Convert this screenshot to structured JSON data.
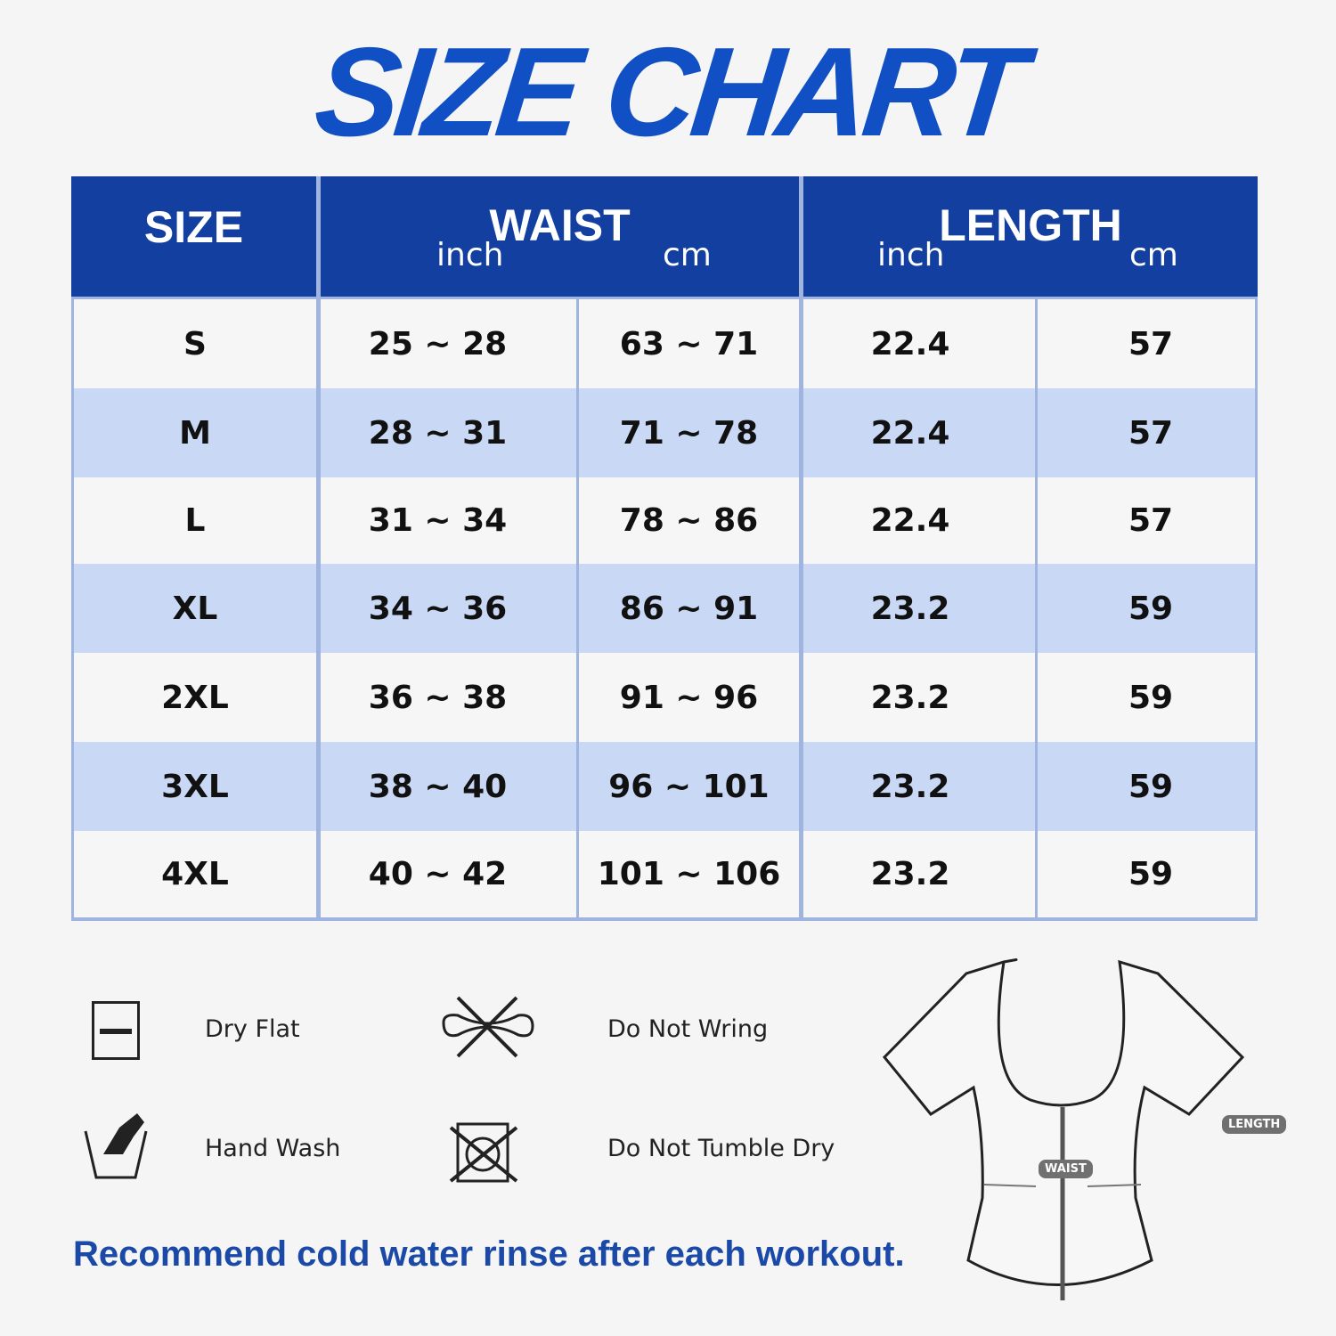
{
  "title": "SIZE CHART",
  "table": {
    "headers": {
      "size": "SIZE",
      "waist": "WAIST",
      "length": "LENGTH",
      "inch": "inch",
      "cm": "cm"
    },
    "rows": [
      [
        "S",
        "25 ~ 28",
        "63 ~ 71",
        "22.4",
        "57"
      ],
      [
        "M",
        "28 ~ 31",
        "71 ~ 78",
        "22.4",
        "57"
      ],
      [
        "L",
        "31 ~ 34",
        "78 ~ 86",
        "22.4",
        "57"
      ],
      [
        "XL",
        "34 ~ 36",
        "86 ~ 91",
        "23.2",
        "59"
      ],
      [
        "2XL",
        "36 ~ 38",
        "91 ~ 96",
        "23.2",
        "59"
      ],
      [
        "3XL",
        "38 ~ 40",
        "96 ~ 101",
        "23.2",
        "59"
      ],
      [
        "4XL",
        "40 ~ 42",
        "101 ~ 106",
        "23.2",
        "59"
      ]
    ]
  },
  "care": [
    {
      "icon": "dry-flat-icon",
      "label": "Dry Flat"
    },
    {
      "icon": "do-not-wring-icon",
      "label": "Do Not Wring"
    },
    {
      "icon": "hand-wash-icon",
      "label": "Hand Wash"
    },
    {
      "icon": "do-not-tumble-dry-icon",
      "label": "Do Not Tumble Dry"
    }
  ],
  "note": "Recommend cold water rinse after each workout.",
  "diagram": {
    "waist_label": "WAIST",
    "length_label": "LENGTH"
  },
  "colors": {
    "header": "#133fa0",
    "title": "#1050c4",
    "row_alt": "#c9d9f5"
  }
}
